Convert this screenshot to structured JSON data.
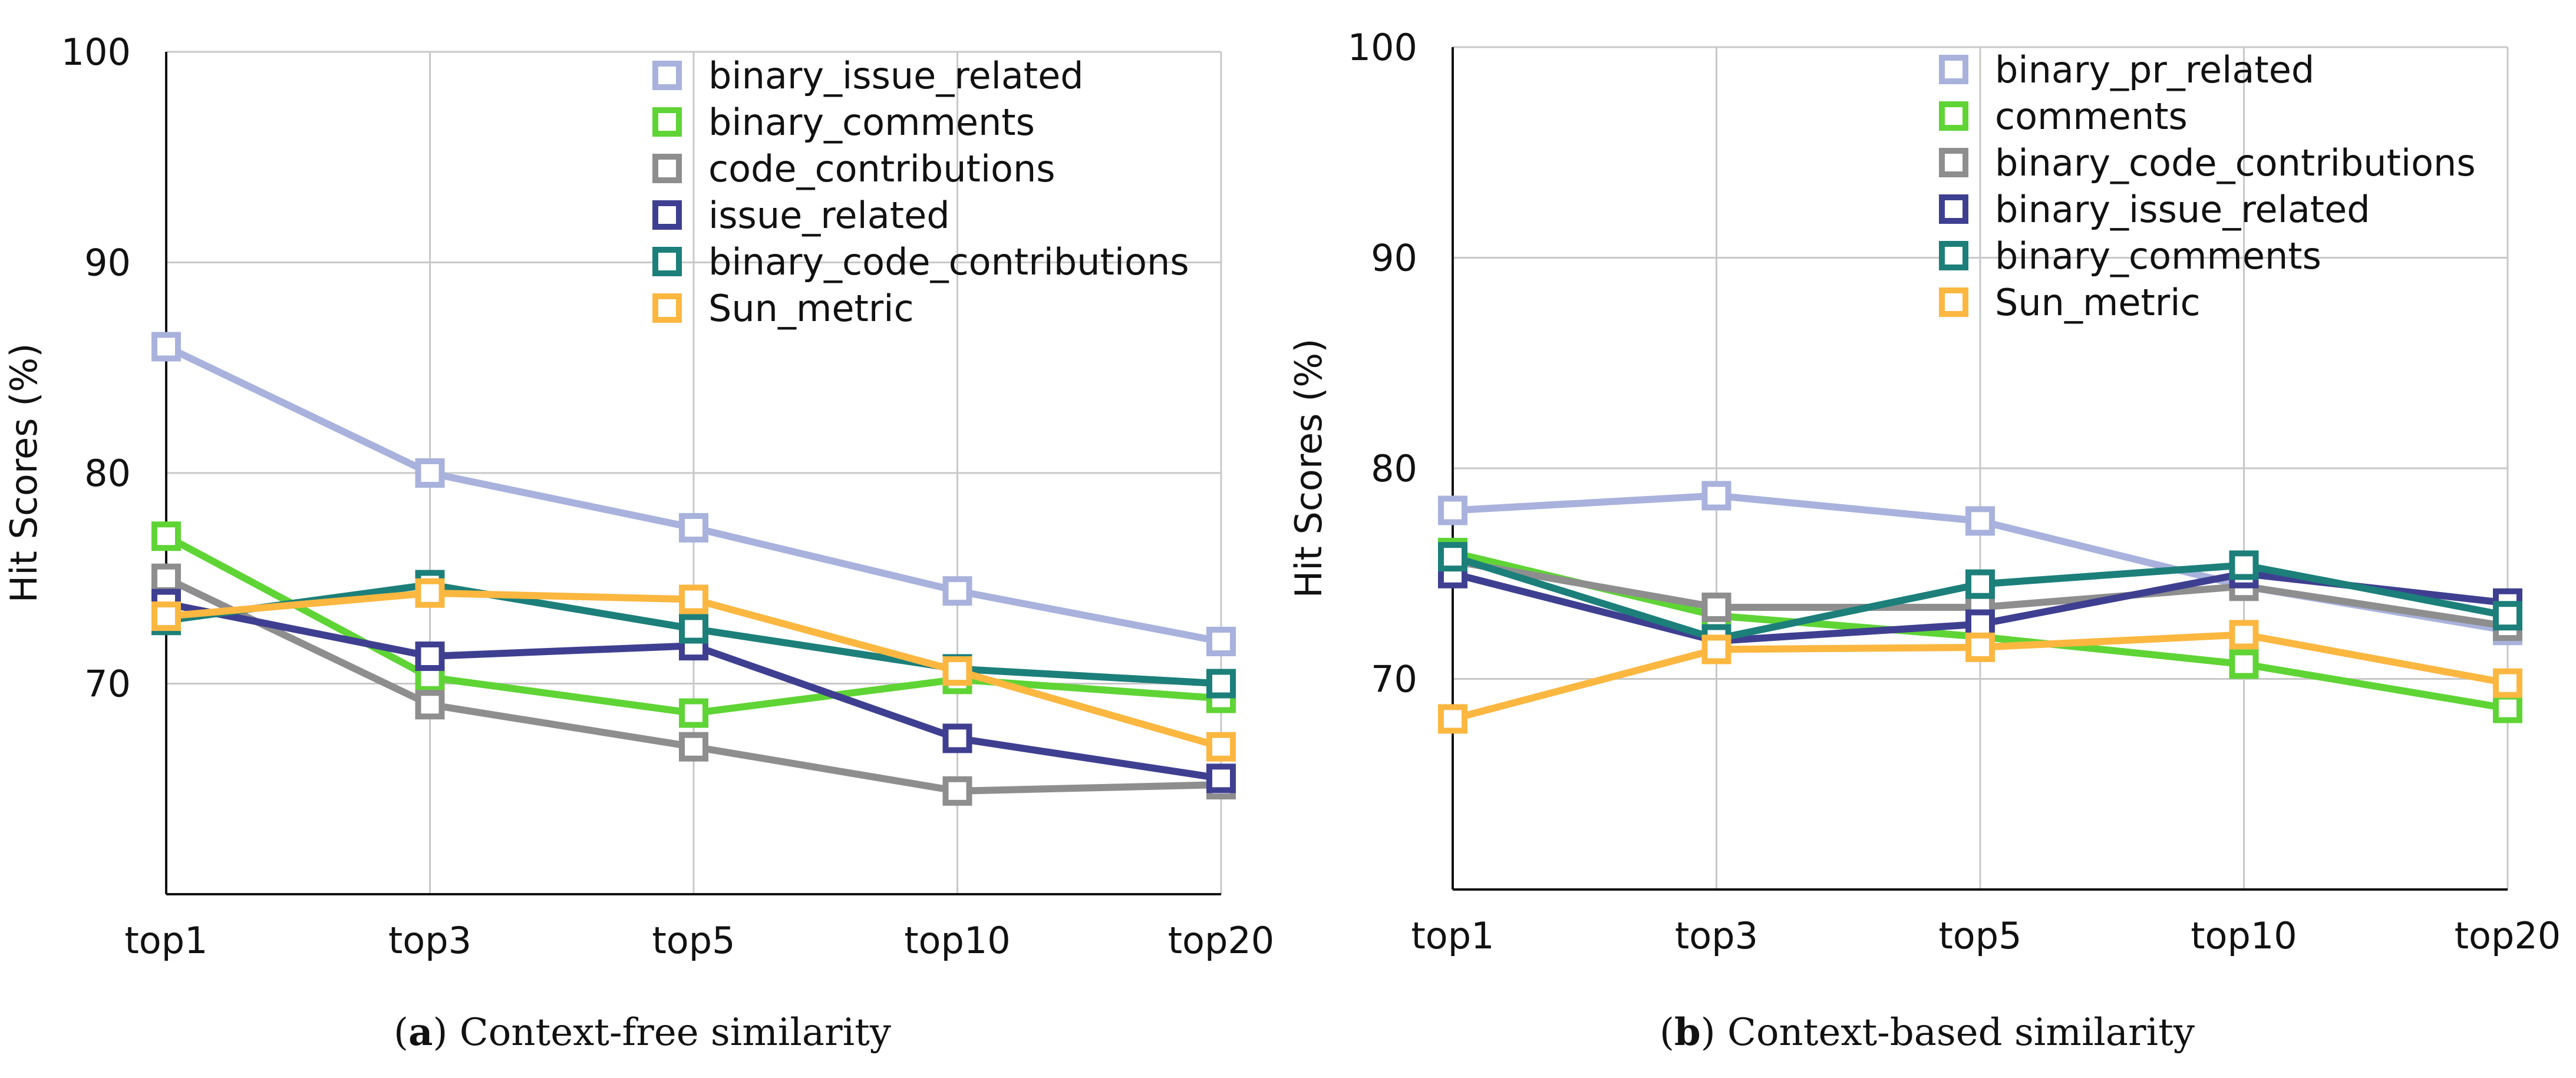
{
  "chart_data": [
    {
      "type": "line",
      "panel_label": "a",
      "caption": "Context-free similarity",
      "title": "",
      "xlabel": "",
      "ylabel": "Hit Scores (%)",
      "categories": [
        "top1",
        "top3",
        "top5",
        "top10",
        "top20"
      ],
      "ylim": [
        60,
        100
      ],
      "yticks": [
        70,
        80,
        90,
        100
      ],
      "grid": true,
      "legend_position": "top-right",
      "series": [
        {
          "name": "binary_issue_related",
          "color": "#a8b2dc",
          "values": [
            86.0,
            80.0,
            77.4,
            74.4,
            72.0
          ]
        },
        {
          "name": "binary_comments",
          "color": "#5fd435",
          "values": [
            77.0,
            70.3,
            68.6,
            70.2,
            69.3
          ]
        },
        {
          "name": "code_contributions",
          "color": "#8e8e8e",
          "values": [
            75.0,
            69.0,
            67.0,
            64.9,
            65.2
          ]
        },
        {
          "name": "issue_related",
          "color": "#3f3f91",
          "values": [
            73.8,
            71.3,
            71.8,
            67.4,
            65.5
          ]
        },
        {
          "name": "binary_code_contributions",
          "color": "#1c7f7a",
          "values": [
            73.0,
            74.7,
            72.6,
            70.7,
            70.0
          ]
        },
        {
          "name": "Sun_metric",
          "color": "#fbb740",
          "values": [
            73.2,
            74.3,
            74.0,
            70.6,
            67.0
          ]
        }
      ]
    },
    {
      "type": "line",
      "panel_label": "b",
      "caption": "Context-based similarity",
      "title": "",
      "xlabel": "",
      "ylabel": "Hit Scores (%)",
      "categories": [
        "top1",
        "top3",
        "top5",
        "top10",
        "top20"
      ],
      "ylim": [
        60,
        100
      ],
      "yticks": [
        70,
        80,
        90,
        100
      ],
      "grid": true,
      "legend_position": "top-right",
      "series": [
        {
          "name": "binary_pr_related",
          "color": "#a8b2dc",
          "values": [
            78.0,
            78.7,
            77.5,
            74.4,
            72.3
          ]
        },
        {
          "name": "comments",
          "color": "#5fd435",
          "values": [
            76.0,
            73.0,
            72.0,
            70.7,
            68.6
          ]
        },
        {
          "name": "binary_code_contributions",
          "color": "#8e8e8e",
          "values": [
            75.6,
            73.4,
            73.4,
            74.4,
            72.5
          ]
        },
        {
          "name": "binary_issue_related",
          "color": "#3f3f91",
          "values": [
            75.0,
            71.8,
            72.6,
            75.0,
            73.6
          ]
        },
        {
          "name": "binary_comments",
          "color": "#1c7f7a",
          "values": [
            75.8,
            71.9,
            74.5,
            75.4,
            73.0
          ]
        },
        {
          "name": "Sun_metric",
          "color": "#fbb740",
          "values": [
            68.1,
            71.4,
            71.5,
            72.1,
            69.8
          ]
        }
      ]
    }
  ]
}
